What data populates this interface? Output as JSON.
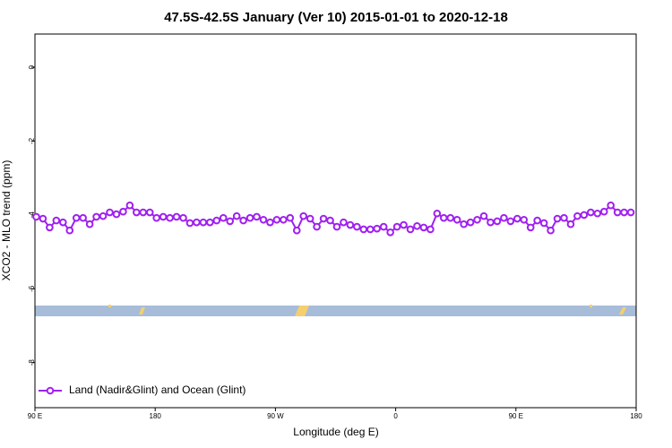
{
  "chart_data": {
    "type": "line",
    "title": "47.5S-42.5S January (Ver 10)   2015-01-01 to 2020-12-18",
    "x_label": "Longitude (deg E)",
    "y_label": "XCO2 - MLO trend (ppm)",
    "xlim": [
      90,
      540
    ],
    "xticks": [
      {
        "value": 90,
        "label": "90 E"
      },
      180,
      {
        "value": 270,
        "label": "90 W"
      },
      {
        "value": 360,
        "label": "0"
      },
      {
        "value": 450,
        "label": "90 E"
      },
      {
        "value": 540,
        "label": "180"
      }
    ],
    "ylim": [
      -9.22,
      0.9
    ],
    "yticks": [
      0,
      -2,
      -4,
      -6,
      -8
    ],
    "legend": "bottom-left",
    "series": [
      {
        "name": "Land (Nadir&Glint) and Ocean (Glint)",
        "color": "#a020f0",
        "x": [
          91,
          96,
          101,
          106,
          111,
          116,
          121,
          126,
          131,
          136,
          141,
          146,
          151,
          156,
          161,
          166,
          171,
          176,
          181,
          186,
          191,
          196,
          201,
          206,
          211,
          216,
          221,
          226,
          231,
          236,
          241,
          246,
          251,
          256,
          261,
          266,
          271,
          276,
          281,
          286,
          291,
          296,
          301,
          306,
          311,
          316,
          321,
          326,
          331,
          336,
          341,
          346,
          351,
          356,
          361,
          366,
          371,
          376,
          381,
          386,
          391,
          396,
          401,
          406,
          411,
          416,
          421,
          426,
          431,
          436,
          441,
          446,
          451,
          456,
          461,
          466,
          471,
          476,
          481,
          486,
          491,
          496,
          501,
          506,
          511,
          516,
          521,
          526,
          531,
          536
        ],
        "values": [
          -4.05,
          -4.1,
          -4.34,
          -4.15,
          -4.2,
          -4.42,
          -4.08,
          -4.08,
          -4.25,
          -4.05,
          -4.03,
          -3.93,
          -3.98,
          -3.91,
          -3.74,
          -3.93,
          -3.93,
          -3.93,
          -4.08,
          -4.05,
          -4.08,
          -4.05,
          -4.08,
          -4.22,
          -4.2,
          -4.2,
          -4.2,
          -4.15,
          -4.08,
          -4.17,
          -4.03,
          -4.15,
          -4.08,
          -4.05,
          -4.13,
          -4.2,
          -4.13,
          -4.13,
          -4.08,
          -4.42,
          -4.03,
          -4.1,
          -4.32,
          -4.1,
          -4.15,
          -4.32,
          -4.2,
          -4.27,
          -4.32,
          -4.39,
          -4.39,
          -4.37,
          -4.32,
          -4.47,
          -4.32,
          -4.27,
          -4.39,
          -4.3,
          -4.34,
          -4.39,
          -3.96,
          -4.08,
          -4.08,
          -4.13,
          -4.25,
          -4.2,
          -4.13,
          -4.03,
          -4.2,
          -4.17,
          -4.08,
          -4.17,
          -4.1,
          -4.13,
          -4.34,
          -4.15,
          -4.22,
          -4.42,
          -4.1,
          -4.08,
          -4.25,
          -4.03,
          -4.0,
          -3.93,
          -3.96,
          -3.91,
          -3.74,
          -3.93,
          -3.93,
          -3.93
        ]
      }
    ]
  }
}
